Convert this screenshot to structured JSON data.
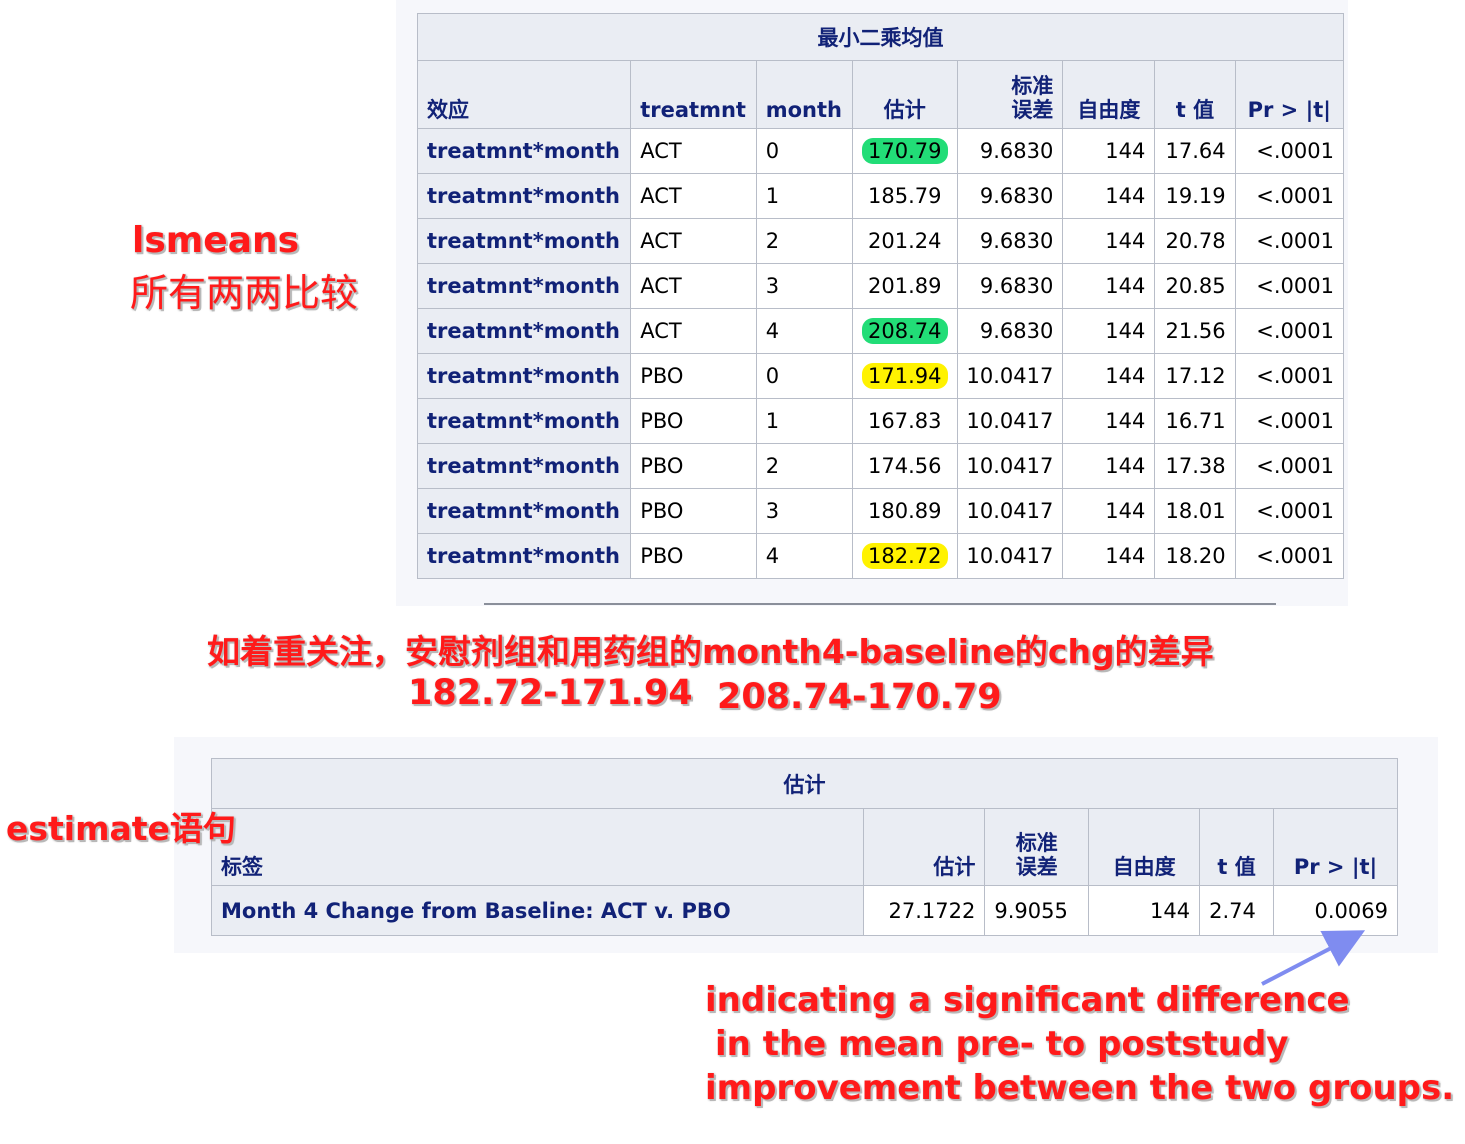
{
  "lsmeans_table": {
    "caption": "最小二乘均值",
    "headers": {
      "effect": "效应",
      "treatmnt": "treatmnt",
      "month": "month",
      "estimate": "估计",
      "stderr_line1": "标准",
      "stderr_line2": "误差",
      "df": "自由度",
      "tvalue": "t 值",
      "pvalue": "Pr > |t|"
    },
    "rows": [
      {
        "effect": "treatmnt*month",
        "treatmnt": "ACT",
        "month": "0",
        "estimate": "170.79",
        "stderr": "9.6830",
        "df": "144",
        "t": "17.64",
        "p": "<.0001",
        "highlight": "green"
      },
      {
        "effect": "treatmnt*month",
        "treatmnt": "ACT",
        "month": "1",
        "estimate": "185.79",
        "stderr": "9.6830",
        "df": "144",
        "t": "19.19",
        "p": "<.0001",
        "highlight": "none"
      },
      {
        "effect": "treatmnt*month",
        "treatmnt": "ACT",
        "month": "2",
        "estimate": "201.24",
        "stderr": "9.6830",
        "df": "144",
        "t": "20.78",
        "p": "<.0001",
        "highlight": "none"
      },
      {
        "effect": "treatmnt*month",
        "treatmnt": "ACT",
        "month": "3",
        "estimate": "201.89",
        "stderr": "9.6830",
        "df": "144",
        "t": "20.85",
        "p": "<.0001",
        "highlight": "none"
      },
      {
        "effect": "treatmnt*month",
        "treatmnt": "ACT",
        "month": "4",
        "estimate": "208.74",
        "stderr": "9.6830",
        "df": "144",
        "t": "21.56",
        "p": "<.0001",
        "highlight": "green"
      },
      {
        "effect": "treatmnt*month",
        "treatmnt": "PBO",
        "month": "0",
        "estimate": "171.94",
        "stderr": "10.0417",
        "df": "144",
        "t": "17.12",
        "p": "<.0001",
        "highlight": "yellow"
      },
      {
        "effect": "treatmnt*month",
        "treatmnt": "PBO",
        "month": "1",
        "estimate": "167.83",
        "stderr": "10.0417",
        "df": "144",
        "t": "16.71",
        "p": "<.0001",
        "highlight": "none"
      },
      {
        "effect": "treatmnt*month",
        "treatmnt": "PBO",
        "month": "2",
        "estimate": "174.56",
        "stderr": "10.0417",
        "df": "144",
        "t": "17.38",
        "p": "<.0001",
        "highlight": "none"
      },
      {
        "effect": "treatmnt*month",
        "treatmnt": "PBO",
        "month": "3",
        "estimate": "180.89",
        "stderr": "10.0417",
        "df": "144",
        "t": "18.01",
        "p": "<.0001",
        "highlight": "none"
      },
      {
        "effect": "treatmnt*month",
        "treatmnt": "PBO",
        "month": "4",
        "estimate": "182.72",
        "stderr": "10.0417",
        "df": "144",
        "t": "18.20",
        "p": "<.0001",
        "highlight": "yellow"
      }
    ]
  },
  "estimate_table": {
    "caption": "估计",
    "headers": {
      "label": "标签",
      "estimate": "估计",
      "stderr_line1": "标准",
      "stderr_line2": "误差",
      "df": "自由度",
      "tvalue": "t 值",
      "pvalue": "Pr > |t|"
    },
    "row": {
      "label": "Month 4 Change from Baseline: ACT v. PBO",
      "estimate": "27.1722",
      "stderr": "9.9055",
      "df": "144",
      "t": "2.74",
      "p": "0.0069"
    }
  },
  "annotations": {
    "lsmeans_title": "lsmeans",
    "lsmeans_subtitle": "所有两两比较",
    "focus_note": "如着重关注，安慰剂组和用药组的month4-baseline的chg的差异",
    "calc_placebo": "182.72-171.94",
    "calc_active": "208.74-170.79",
    "estimate_label": "estimate语句",
    "conclusion_line1": "indicating a significant difference",
    "conclusion_line2": "in the mean pre- to poststudy",
    "conclusion_line3": "improvement between the two groups."
  },
  "colors": {
    "header_text": "#112277",
    "header_bg": "#eaedf3",
    "annotation_red": "#ff1a1a",
    "highlight_green": "#22dd77",
    "highlight_yellow": "#fff200",
    "arrow": "#7f8cf0"
  }
}
